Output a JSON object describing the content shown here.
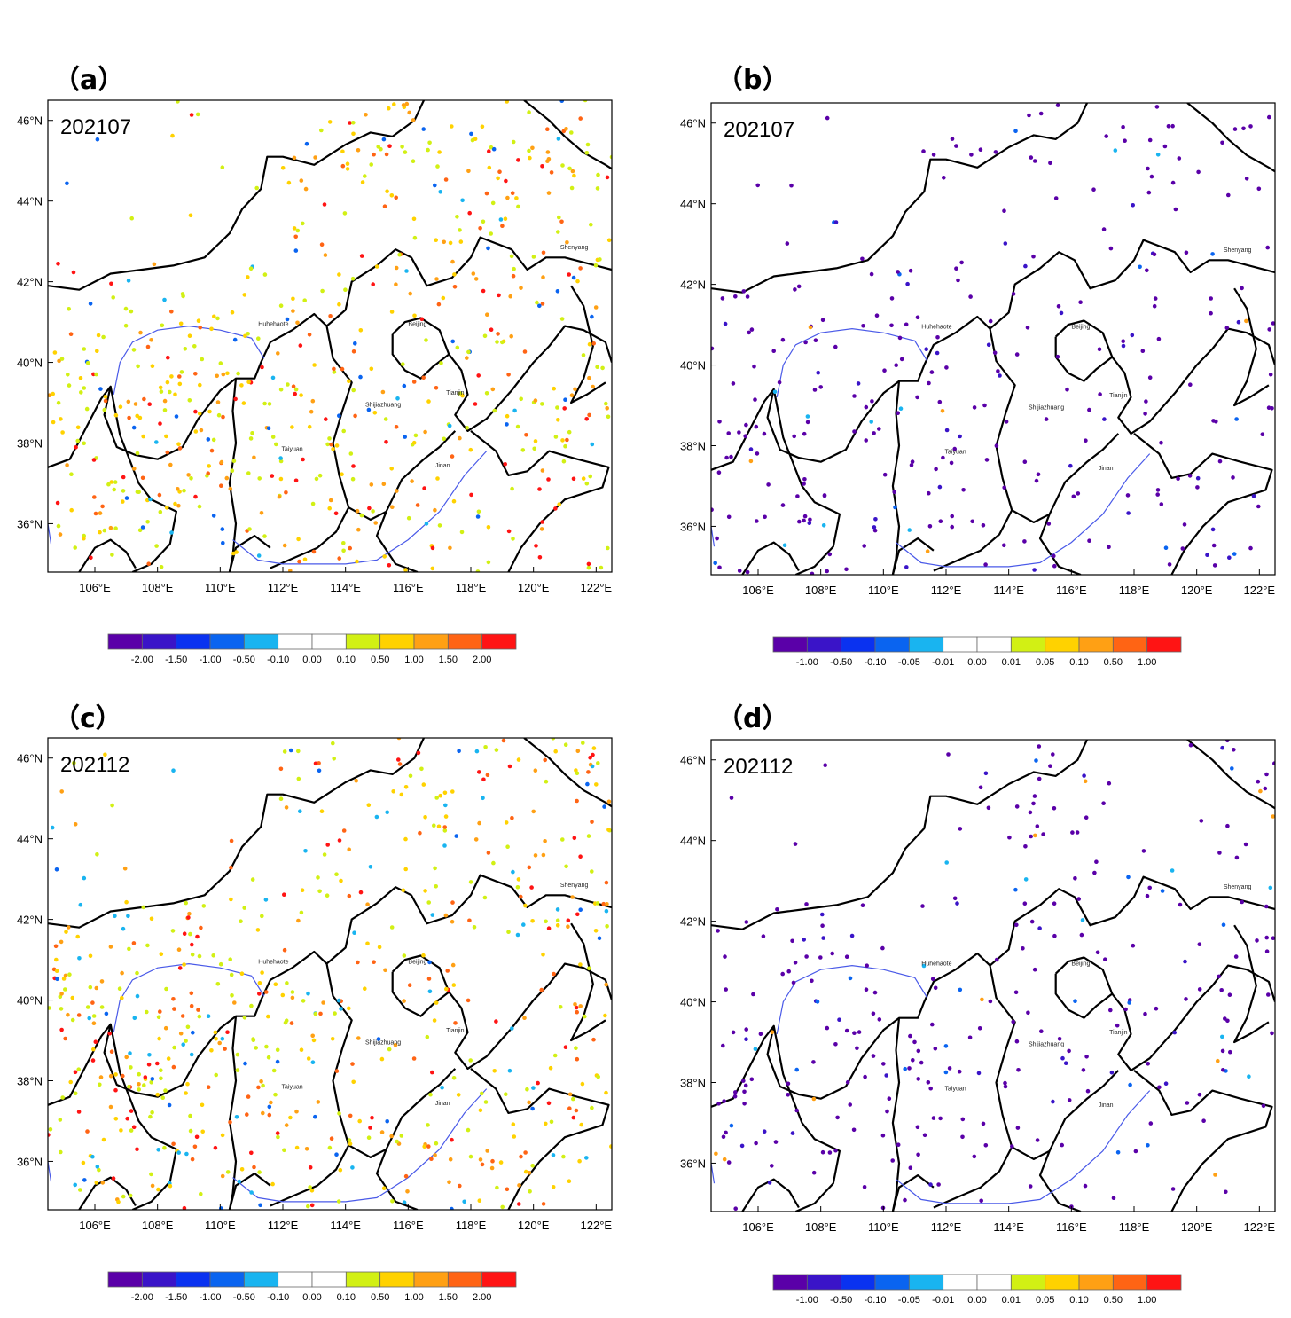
{
  "panels": [
    {
      "label": "（a）",
      "date": "202107",
      "colorbar": "a"
    },
    {
      "label": "（b）",
      "date": "202107",
      "colorbar": "b"
    },
    {
      "label": "（c）",
      "date": "202112",
      "colorbar": "a"
    },
    {
      "label": "（d）",
      "date": "202112",
      "colorbar": "b"
    }
  ],
  "map": {
    "lon_ticks": [
      "106°E",
      "108°E",
      "110°E",
      "112°E",
      "114°E",
      "116°E",
      "118°E",
      "120°E",
      "122°E"
    ],
    "lat_ticks": [
      "46°N",
      "44°N",
      "42°N",
      "40°N",
      "38°N",
      "36°N"
    ],
    "cities": [
      "Huhehaote",
      "Beijing",
      "Tianjin",
      "Shijiazhuang",
      "Taiyuan",
      "Jinan",
      "Shenyang"
    ]
  },
  "colorbars": {
    "a": {
      "ticks": [
        "-2.00",
        "-1.50",
        "-1.00",
        "-0.50",
        "-0.10",
        "0.00",
        "0.10",
        "0.50",
        "1.00",
        "1.50",
        "2.00"
      ],
      "colors": [
        "#5a00a8",
        "#3a14c8",
        "#0a32f0",
        "#0a64f0",
        "#19b4f0",
        "#ffffff",
        "#ffffff",
        "#d2f014",
        "#ffd200",
        "#ffa014",
        "#ff6414",
        "#ff1414"
      ]
    },
    "b": {
      "ticks": [
        "-1.00",
        "-0.50",
        "-0.10",
        "-0.05",
        "-0.01",
        "0.00",
        "0.01",
        "0.05",
        "0.10",
        "0.50",
        "1.00"
      ],
      "colors": [
        "#5a00a8",
        "#3a14c8",
        "#0a32f0",
        "#0a64f0",
        "#19b4f0",
        "#ffffff",
        "#ffffff",
        "#d2f014",
        "#ffd200",
        "#ffa014",
        "#ff6414",
        "#ff1414"
      ]
    }
  }
}
